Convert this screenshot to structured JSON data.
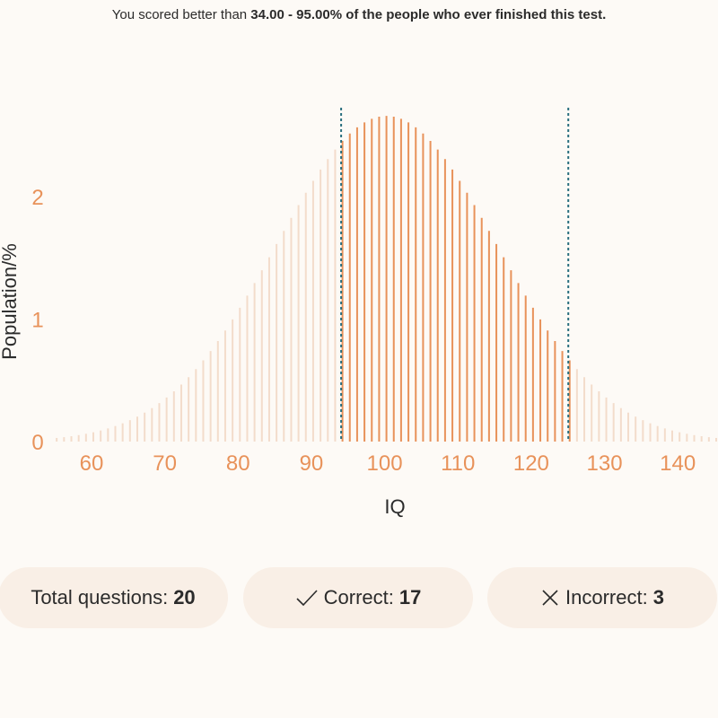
{
  "headline": {
    "prefix": "You scored better than ",
    "highlight": "34.00 - 95.00% of the people who ever finished this test."
  },
  "chart_data": {
    "type": "bar",
    "xlabel": "IQ",
    "ylabel": "Population/%",
    "x_ticks": [
      60,
      70,
      80,
      90,
      100,
      110,
      120,
      130,
      140
    ],
    "y_ticks": [
      0,
      1,
      2
    ],
    "xlim": [
      54,
      145
    ],
    "ylim": [
      0,
      2.8
    ],
    "distribution": {
      "mean": 100,
      "sd": 15,
      "step": 1,
      "x_start": 55,
      "x_end": 145
    },
    "score_range": [
      94,
      125
    ],
    "colors": {
      "highlight": "#e8925a",
      "faded": "#f3dccb",
      "marker": "#2a6f7f",
      "tick": "#e8925a"
    }
  },
  "stats": {
    "total_label": "Total questions:",
    "total_value": "20",
    "correct_label": "Correct:",
    "correct_value": "17",
    "incorrect_label": "Incorrect:",
    "incorrect_value": "3"
  }
}
